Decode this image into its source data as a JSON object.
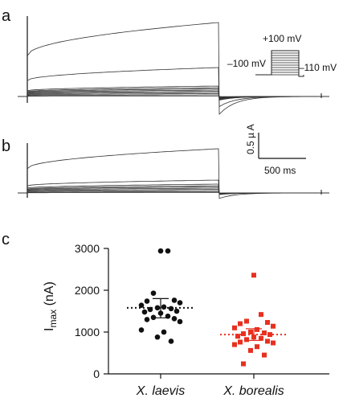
{
  "panels": {
    "a": "a",
    "b": "b",
    "c": "c"
  },
  "protocol": {
    "hold_label": "–100 mV",
    "top_label": "+100 mV",
    "tail_label": "–110 mV"
  },
  "scale_bar": {
    "current_label": "0.5 µ A",
    "time_label": "500 ms"
  },
  "colors": {
    "trace": "#333333",
    "laevis": "#111111",
    "borealis": "#e83020"
  },
  "chart_data": {
    "type": "scatter",
    "categories": [
      "X. laevis",
      "X. borealis"
    ],
    "ylabel_main": "I",
    "ylabel_sub": "max",
    "ylabel_unit": " (nA)",
    "ylim": [
      0,
      3000
    ],
    "yticks": [
      0,
      1000,
      2000,
      3000
    ],
    "grid": false,
    "series": [
      {
        "name": "X. laevis",
        "marker": "circle",
        "mean": 1580,
        "error_upper": 1800,
        "error_lower": 1340,
        "values": [
          2940,
          2940,
          1930,
          1760,
          1740,
          1700,
          1640,
          1600,
          1580,
          1560,
          1540,
          1500,
          1480,
          1450,
          1380,
          1350,
          1320,
          1300,
          1250,
          1050,
          1000,
          880,
          780
        ]
      },
      {
        "name": "X. borealis",
        "marker": "square",
        "mean": 940,
        "error_upper": 1080,
        "error_lower": 800,
        "values": [
          2360,
          1420,
          1260,
          1230,
          1200,
          1140,
          1100,
          1060,
          1000,
          980,
          960,
          940,
          900,
          880,
          850,
          820,
          780,
          760,
          740,
          700,
          650,
          560,
          450,
          240
        ]
      }
    ]
  }
}
